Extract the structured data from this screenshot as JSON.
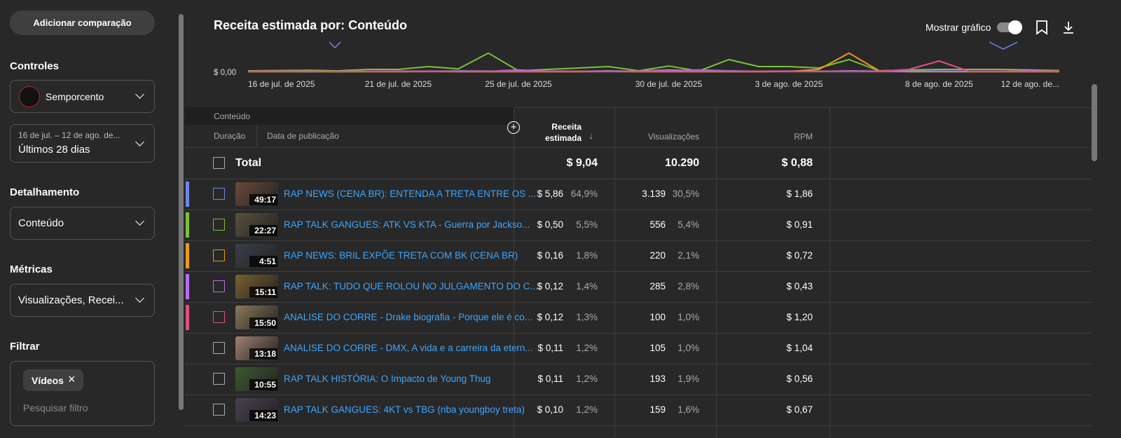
{
  "sidebar": {
    "compare_button": "Adicionar comparação",
    "controls": {
      "label": "Controles",
      "channel": "Semporcento",
      "date_range": "16 de jul. – 12 de ago. de...",
      "period": "Últimos 28 dias"
    },
    "breakdown": {
      "label": "Detalhamento",
      "value": "Conteúdo"
    },
    "metrics": {
      "label": "Métricas",
      "value": "Visualizações, Recei..."
    },
    "filter": {
      "label": "Filtrar",
      "chip": "Vídeos",
      "placeholder": "Pesquisar filtro"
    }
  },
  "header": {
    "title": "Receita estimada por: Conteúdo",
    "toggle_label": "Mostrar gráfico"
  },
  "chart_data": {
    "type": "line",
    "categories": [
      "16 de jul. de 2025",
      null,
      null,
      null,
      null,
      "21 de jul. de 2025",
      null,
      null,
      null,
      "25 de jul. de 2025",
      null,
      null,
      null,
      null,
      "30 de jul. de 2025",
      null,
      null,
      null,
      "3 de ago. de 2025",
      null,
      null,
      null,
      null,
      "8 de ago. de 2025",
      null,
      null,
      null,
      "12 de ago. de..."
    ],
    "ylim": [
      0,
      1
    ],
    "yticks": [
      {
        "value": 0,
        "label": "$ 0,00"
      }
    ],
    "grid": true,
    "series": [
      {
        "color": "#79c23a",
        "values": [
          0.05,
          0.06,
          0.07,
          0.05,
          0.1,
          0.1,
          0.2,
          0.12,
          0.68,
          0.05,
          0.1,
          0.15,
          0.2,
          0.05,
          0.22,
          0.04,
          0.45,
          0.2,
          0.2,
          0.15,
          0.45,
          0.05,
          0.08,
          0.1,
          0.1,
          0.1,
          0.08,
          0.06
        ]
      },
      {
        "color": "#6f86ec",
        "values": [
          0.04,
          0.03,
          0.03,
          0.02,
          0.03,
          0.04,
          0.03,
          0.05,
          0.04,
          0.03,
          0.04,
          0.03,
          0.05,
          0.03,
          0.04,
          0.08,
          0.05,
          0.03,
          0.04,
          0.03,
          0.05,
          0.04,
          0.03,
          0.04,
          0.03,
          0.03,
          0.04,
          0.03
        ]
      },
      {
        "color": "#e89a1c",
        "values": [
          0.02,
          0.02,
          0.02,
          0.02,
          0.02,
          0.02,
          0.03,
          0.02,
          0.02,
          0.02,
          0.02,
          0.02,
          0.03,
          0.02,
          0.02,
          0.02,
          0.02,
          0.02,
          0.03,
          0.1,
          0.68,
          0.05,
          0.02,
          0.02,
          0.02,
          0.02,
          0.02,
          0.02
        ]
      },
      {
        "color": "#b36ef0",
        "values": [
          0.03,
          0.03,
          0.02,
          0.03,
          0.03,
          0.03,
          0.04,
          0.03,
          0.03,
          0.08,
          0.03,
          0.03,
          0.03,
          0.04,
          0.08,
          0.05,
          0.03,
          0.03,
          0.03,
          0.03,
          0.04,
          0.03,
          0.03,
          0.03,
          0.03,
          0.03,
          0.05,
          0.03
        ]
      },
      {
        "color": "#e0507a",
        "values": [
          0.03,
          0.03,
          0.03,
          0.03,
          0.03,
          0.03,
          0.03,
          0.03,
          0.03,
          0.03,
          0.03,
          0.03,
          0.03,
          0.03,
          0.03,
          0.03,
          0.03,
          0.03,
          0.03,
          0.03,
          0.03,
          0.03,
          0.1,
          0.4,
          0.03,
          0.03,
          0.03,
          0.03
        ]
      }
    ]
  },
  "table": {
    "group_header": "Conteúdo",
    "columns": [
      "Duração",
      "Data de publicação",
      "Receita estimada",
      "Visualizações",
      "RPM"
    ],
    "total": {
      "label": "Total",
      "revenue": "$ 9,04",
      "views": "10.290",
      "rpm": "$ 0,88"
    },
    "rows": [
      {
        "color": "#6f86ec",
        "duration": "49:17",
        "title": "RAP NEWS (CENA BR): ENTENDA A TRETA ENTRE OS ...",
        "revenue": "$ 5,86",
        "revenue_share": "64,9%",
        "views": "3.139",
        "views_share": "30,5%",
        "rpm": "$ 1,86"
      },
      {
        "color": "#79c23a",
        "duration": "22:27",
        "title": "RAP TALK GANGUES: ATK VS KTA - Guerra por Jackso...",
        "revenue": "$ 0,50",
        "revenue_share": "5,5%",
        "views": "556",
        "views_share": "5,4%",
        "rpm": "$ 0,91"
      },
      {
        "color": "#e89a1c",
        "duration": "4:51",
        "title": "RAP NEWS: BRIL EXPÕE TRETA COM BK (CENA BR)",
        "revenue": "$ 0,16",
        "revenue_share": "1,8%",
        "views": "220",
        "views_share": "2,1%",
        "rpm": "$ 0,72"
      },
      {
        "color": "#b36ef0",
        "duration": "15:11",
        "title": "RAP TALK: TUDO QUE ROLOU NO JULGAMENTO DO C...",
        "revenue": "$ 0,12",
        "revenue_share": "1,4%",
        "views": "285",
        "views_share": "2,8%",
        "rpm": "$ 0,43"
      },
      {
        "color": "#e0507a",
        "duration": "15:50",
        "title": "ANALISE DO CORRE - Drake biografia - Porque ele é co...",
        "revenue": "$ 0,12",
        "revenue_share": "1,3%",
        "views": "100",
        "views_share": "1,0%",
        "rpm": "$ 1,20"
      },
      {
        "duration": "13:18",
        "title": "ANALISE DO CORRE - DMX, A vida e a carreira da etern...",
        "revenue": "$ 0,11",
        "revenue_share": "1,2%",
        "views": "105",
        "views_share": "1,0%",
        "rpm": "$ 1,04"
      },
      {
        "duration": "10:55",
        "title": "RAP TALK HISTÓRIA: O Impacto de Young Thug",
        "revenue": "$ 0,11",
        "revenue_share": "1,2%",
        "views": "193",
        "views_share": "1,9%",
        "rpm": "$ 0,56"
      },
      {
        "duration": "14:23",
        "title": "RAP TALK GANGUES: 4KT vs TBG (nba youngboy treta)",
        "revenue": "$ 0,10",
        "revenue_share": "1,2%",
        "views": "159",
        "views_share": "1,6%",
        "rpm": "$ 0,67"
      }
    ]
  }
}
